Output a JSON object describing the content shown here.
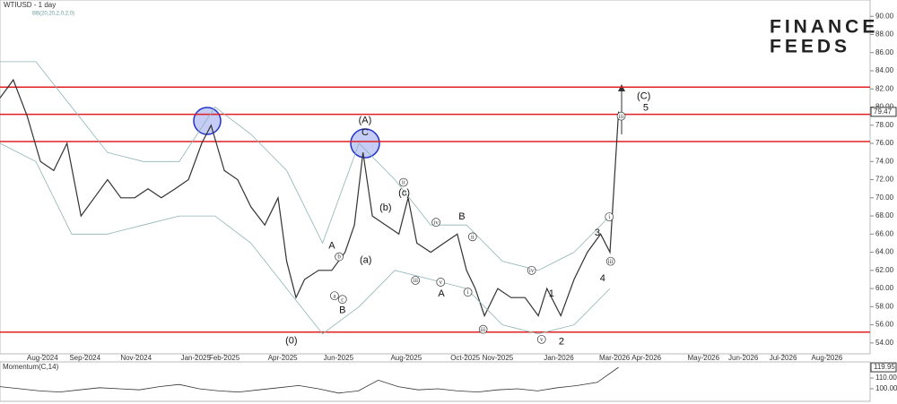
{
  "chart_data": {
    "type": "line",
    "title": "WTIUSD - 1 day",
    "indicator": "BB(20,20,2,0,2,0)",
    "logo": [
      "FINANCE",
      "FEEDS"
    ],
    "current_price": {
      "value": 79.47,
      "label": "79.47"
    },
    "xlim": [
      0,
      131.1
    ],
    "xticks": [
      {
        "value": 6.4,
        "label": "Aug-2024"
      },
      {
        "value": 12.8,
        "label": "Sep-2024"
      },
      {
        "value": 20.5,
        "label": "Nov-2024"
      },
      {
        "value": 29.5,
        "label": "Jan-2025"
      },
      {
        "value": 33.8,
        "label": "Feb-2025"
      },
      {
        "value": 42.6,
        "label": "Apr-2025"
      },
      {
        "value": 51,
        "label": "Jun-2025"
      },
      {
        "value": 61.2,
        "label": "Aug-2025"
      },
      {
        "value": 70.1,
        "label": "Oct-2025"
      },
      {
        "value": 75,
        "label": "Nov-2025"
      },
      {
        "value": 84.2,
        "label": "Jan-2026"
      },
      {
        "value": 92.6,
        "label": "Mar-2026"
      },
      {
        "value": 97.4,
        "label": "Apr-2026"
      },
      {
        "value": 106,
        "label": "May-2026"
      },
      {
        "value": 112,
        "label": "Jun-2026"
      },
      {
        "value": 118,
        "label": "Jul-2026"
      },
      {
        "value": 124.6,
        "label": "Aug-2026"
      }
    ],
    "ylim": [
      52.8,
      91.8
    ],
    "yticks": [
      {
        "value": 54,
        "label": "54.00"
      },
      {
        "value": 56,
        "label": "56.00"
      },
      {
        "value": 58,
        "label": "58.00"
      },
      {
        "value": 60,
        "label": "60.00"
      },
      {
        "value": 62,
        "label": "62.00"
      },
      {
        "value": 64,
        "label": "64.00"
      },
      {
        "value": 66,
        "label": "66.00"
      },
      {
        "value": 68,
        "label": "68.00"
      },
      {
        "value": 70,
        "label": "70.00"
      },
      {
        "value": 72,
        "label": "72.00"
      },
      {
        "value": 74,
        "label": "74.00"
      },
      {
        "value": 76,
        "label": "76.00"
      },
      {
        "value": 78,
        "label": "78.00"
      },
      {
        "value": 80,
        "label": "80.00"
      },
      {
        "value": 82,
        "label": "82.00"
      },
      {
        "value": 84,
        "label": "84.00"
      },
      {
        "value": 86,
        "label": "86.00"
      },
      {
        "value": 88,
        "label": "88.00"
      },
      {
        "value": 90,
        "label": "90.00"
      }
    ],
    "levels": {
      "color": "#e02020",
      "values": [
        82.2,
        79.2,
        76.2,
        55.2
      ]
    },
    "series": [
      {
        "name": "WTIUSD",
        "color": "#333333",
        "x": [
          0,
          2,
          4.1,
          6.1,
          8.1,
          10.1,
          12.2,
          14.2,
          16.2,
          18.2,
          20.3,
          22.3,
          24.3,
          26.4,
          28.4,
          30.4,
          31.8,
          33.8,
          35.8,
          37.8,
          39.9,
          41.9,
          43.2,
          44.6,
          45.9,
          48,
          50,
          52,
          53.4,
          54.7,
          56.1,
          58.1,
          60.1,
          61.5,
          62.8,
          64.9,
          66.9,
          68.9,
          70.3,
          71.6,
          73,
          75,
          77,
          79.1,
          81.1,
          82.4,
          84.5,
          86.5,
          88.5,
          90.5,
          91.9,
          93.2
        ],
        "values": [
          81,
          83,
          79,
          74,
          73,
          76,
          68,
          70,
          72,
          70,
          70,
          71,
          70,
          71,
          72,
          76,
          78,
          73,
          72,
          69,
          67,
          70,
          63,
          59,
          61,
          62,
          62,
          64,
          67,
          75,
          68,
          67,
          66,
          70,
          65,
          64,
          65,
          66,
          62,
          60,
          57,
          60,
          59,
          59,
          57,
          60,
          57,
          61,
          64,
          66,
          64,
          79.5
        ]
      },
      {
        "name": "BB upper",
        "color": "#8fb3b3",
        "x": [
          0,
          5.4,
          10.8,
          16.2,
          21.6,
          27,
          32.4,
          37.8,
          43.2,
          48.6,
          54.1,
          59.5,
          64.9,
          70.3,
          75.7,
          81.1,
          86.5,
          91.9
        ],
        "values": [
          85,
          85,
          80,
          75,
          74,
          74,
          80,
          77,
          73,
          65,
          76,
          72,
          67,
          67,
          63,
          62,
          64,
          68
        ]
      },
      {
        "name": "BB lower",
        "color": "#8fb3b3",
        "x": [
          0,
          5.4,
          10.8,
          16.2,
          21.6,
          27,
          32.4,
          37.8,
          43.2,
          48.6,
          54.1,
          59.5,
          64.9,
          70.3,
          75.7,
          81.1,
          86.5,
          91.9
        ],
        "values": [
          76,
          74,
          66,
          66,
          67,
          68,
          68,
          65,
          60,
          55,
          58,
          62,
          61,
          60,
          56,
          55,
          56,
          60
        ]
      }
    ],
    "annotations": [
      {
        "text": "(C)",
        "x": 97,
        "y": 81.2
      },
      {
        "text": "5",
        "x": 97.3,
        "y": 79.9
      },
      {
        "text": "(A)",
        "x": 55,
        "y": 78.5
      },
      {
        "text": "C",
        "x": 55,
        "y": 77.2
      },
      {
        "text": "A",
        "x": 50,
        "y": 64.7
      },
      {
        "text": "B",
        "x": 51.6,
        "y": 57.6
      },
      {
        "text": "(0)",
        "x": 43.9,
        "y": 54.2
      },
      {
        "text": "A",
        "x": 66.5,
        "y": 59.4
      },
      {
        "text": "B",
        "x": 69.6,
        "y": 67.9
      },
      {
        "text": "1",
        "x": 83.1,
        "y": 59.4
      },
      {
        "text": "2",
        "x": 84.6,
        "y": 54.1
      },
      {
        "text": "3",
        "x": 90,
        "y": 66.1
      },
      {
        "text": "4",
        "x": 90.8,
        "y": 61.1
      },
      {
        "text": "b",
        "x": 51.1,
        "y": 63.5,
        "circled": true
      },
      {
        "text": "a",
        "x": 50.4,
        "y": 59.2,
        "circled": true
      },
      {
        "text": "c",
        "x": 51.6,
        "y": 58.8,
        "circled": true
      },
      {
        "text": "(a)",
        "x": 55.1,
        "y": 63.1
      },
      {
        "text": "(b)",
        "x": 58.1,
        "y": 68.9
      },
      {
        "text": "ii",
        "x": 60.8,
        "y": 71.7,
        "circled": true
      },
      {
        "text": "(c)",
        "x": 60.9,
        "y": 70.5
      },
      {
        "text": "iii",
        "x": 62.6,
        "y": 60.9,
        "circled": true
      },
      {
        "text": "iv",
        "x": 65.7,
        "y": 67.3,
        "circled": true
      },
      {
        "text": "v",
        "x": 66.4,
        "y": 60.7,
        "circled": true
      },
      {
        "text": "ii",
        "x": 71.2,
        "y": 65.7,
        "circled": true
      },
      {
        "text": "i",
        "x": 70.5,
        "y": 59.6,
        "circled": true
      },
      {
        "text": "iii",
        "x": 72.8,
        "y": 55.5,
        "circled": true
      },
      {
        "text": "iv",
        "x": 80.1,
        "y": 62,
        "circled": true
      },
      {
        "text": "v",
        "x": 81.6,
        "y": 54.4,
        "circled": true
      },
      {
        "text": "i",
        "x": 91.8,
        "y": 67.9,
        "circled": true
      },
      {
        "text": "iii",
        "x": 92,
        "y": 63,
        "circled": true
      },
      {
        "text": "iii",
        "x": 93.6,
        "y": 79,
        "circled": true
      }
    ],
    "momentum": {
      "title": "Momentum(C,14)",
      "color": "#333333",
      "ylim": [
        90,
        125
      ],
      "yticks": [
        {
          "value": 100,
          "label": "100.00"
        },
        {
          "value": 110,
          "label": "110.00"
        }
      ],
      "current": {
        "value": 119.95,
        "label": "119.95"
      },
      "x": [
        0,
        3,
        6,
        9,
        12,
        15,
        18,
        21,
        24,
        27,
        30,
        33,
        36,
        39,
        42,
        45,
        48,
        51,
        54,
        57,
        60,
        63,
        66,
        69,
        72,
        75,
        78,
        81,
        84,
        87,
        90,
        93.2
      ],
      "values": [
        102,
        100,
        98,
        97,
        99,
        101,
        100,
        99,
        102,
        104,
        100,
        98,
        97,
        99,
        101,
        103,
        100,
        96,
        98,
        108,
        102,
        99,
        100,
        98,
        97,
        99,
        100,
        98,
        101,
        103,
        106,
        120
      ]
    }
  }
}
